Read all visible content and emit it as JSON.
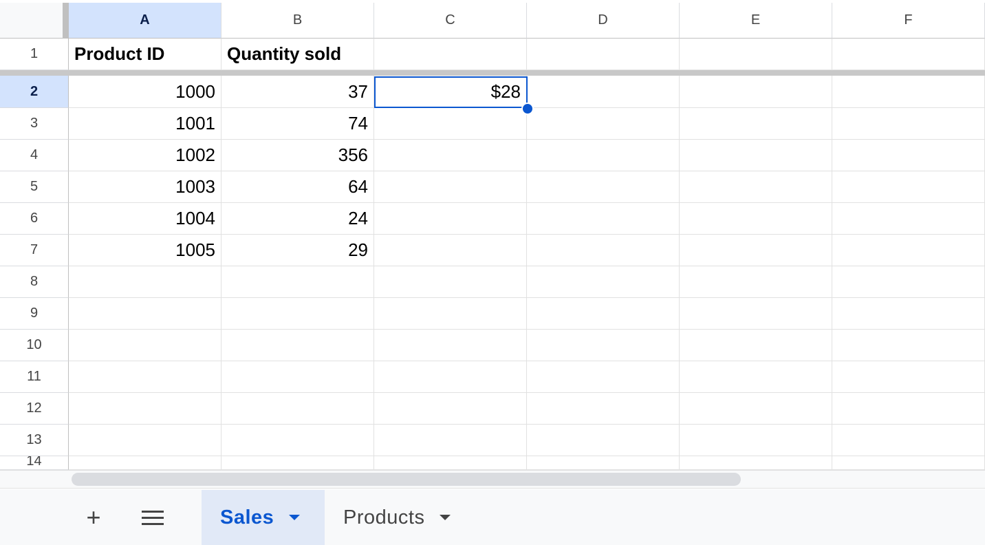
{
  "columns": [
    "A",
    "B",
    "C",
    "D",
    "E",
    "F"
  ],
  "selected_column": "A",
  "selected_row": 2,
  "rows": [
    {
      "num": "1",
      "cells": [
        {
          "v": "Product ID",
          "bold": true
        },
        {
          "v": "Quantity sold",
          "bold": true
        },
        {
          "v": ""
        },
        {
          "v": ""
        },
        {
          "v": ""
        },
        {
          "v": ""
        }
      ]
    },
    {
      "num": "2",
      "cells": [
        {
          "v": "1000",
          "num": true
        },
        {
          "v": "37",
          "num": true
        },
        {
          "v": "$28",
          "num": true
        },
        {
          "v": ""
        },
        {
          "v": ""
        },
        {
          "v": ""
        }
      ]
    },
    {
      "num": "3",
      "cells": [
        {
          "v": "1001",
          "num": true
        },
        {
          "v": "74",
          "num": true
        },
        {
          "v": ""
        },
        {
          "v": ""
        },
        {
          "v": ""
        },
        {
          "v": ""
        }
      ]
    },
    {
      "num": "4",
      "cells": [
        {
          "v": "1002",
          "num": true
        },
        {
          "v": "356",
          "num": true
        },
        {
          "v": ""
        },
        {
          "v": ""
        },
        {
          "v": ""
        },
        {
          "v": ""
        }
      ]
    },
    {
      "num": "5",
      "cells": [
        {
          "v": "1003",
          "num": true
        },
        {
          "v": "64",
          "num": true
        },
        {
          "v": ""
        },
        {
          "v": ""
        },
        {
          "v": ""
        },
        {
          "v": ""
        }
      ]
    },
    {
      "num": "6",
      "cells": [
        {
          "v": "1004",
          "num": true
        },
        {
          "v": "24",
          "num": true
        },
        {
          "v": ""
        },
        {
          "v": ""
        },
        {
          "v": ""
        },
        {
          "v": ""
        }
      ]
    },
    {
      "num": "7",
      "cells": [
        {
          "v": "1005",
          "num": true
        },
        {
          "v": "29",
          "num": true
        },
        {
          "v": ""
        },
        {
          "v": ""
        },
        {
          "v": ""
        },
        {
          "v": ""
        }
      ]
    },
    {
      "num": "8",
      "cells": []
    },
    {
      "num": "9",
      "cells": []
    },
    {
      "num": "10",
      "cells": []
    },
    {
      "num": "11",
      "cells": []
    },
    {
      "num": "12",
      "cells": []
    },
    {
      "num": "13",
      "cells": []
    },
    {
      "num": "14",
      "cells": []
    }
  ],
  "active_cell": "C2",
  "sheet_tabs": {
    "add_icon": "plus-icon",
    "menu_icon": "hamburger-icon",
    "tabs": [
      {
        "label": "Sales",
        "active": true
      },
      {
        "label": "Products",
        "active": false
      }
    ]
  },
  "colors": {
    "accent": "#0b57d0",
    "selected_header": "#d3e3fd"
  }
}
